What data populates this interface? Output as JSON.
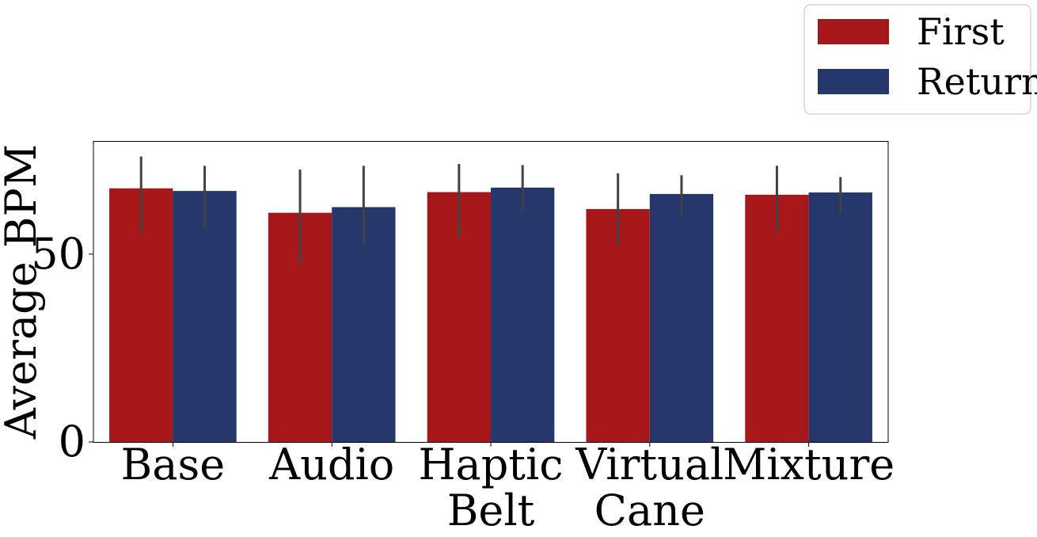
{
  "chart_data": {
    "type": "bar",
    "categories": [
      [
        "Base"
      ],
      [
        "Audio"
      ],
      [
        "Haptic",
        "Belt"
      ],
      [
        "Virtual",
        "Cane"
      ],
      [
        "Mixture"
      ]
    ],
    "series": [
      {
        "name": "First",
        "color": "#a51719",
        "values": [
          67.5,
          61.0,
          66.5,
          62.0,
          65.8
        ],
        "error_low": [
          55.5,
          47.0,
          54.5,
          52.5,
          56.0
        ],
        "error_high": [
          76.0,
          72.5,
          74.0,
          71.5,
          73.5
        ]
      },
      {
        "name": "Return",
        "color": "#25376b",
        "values": [
          66.8,
          62.5,
          67.7,
          66.0,
          66.4
        ],
        "error_low": [
          57.0,
          52.5,
          61.5,
          60.0,
          61.0
        ],
        "error_high": [
          73.5,
          73.5,
          73.7,
          71.0,
          70.5
        ]
      }
    ],
    "xlabel": "",
    "ylabel": "Average BPM",
    "ylim": [
      0,
      80
    ],
    "yticks": [
      0,
      50
    ],
    "grid": false,
    "legend_position": "top-right, outside plot"
  }
}
